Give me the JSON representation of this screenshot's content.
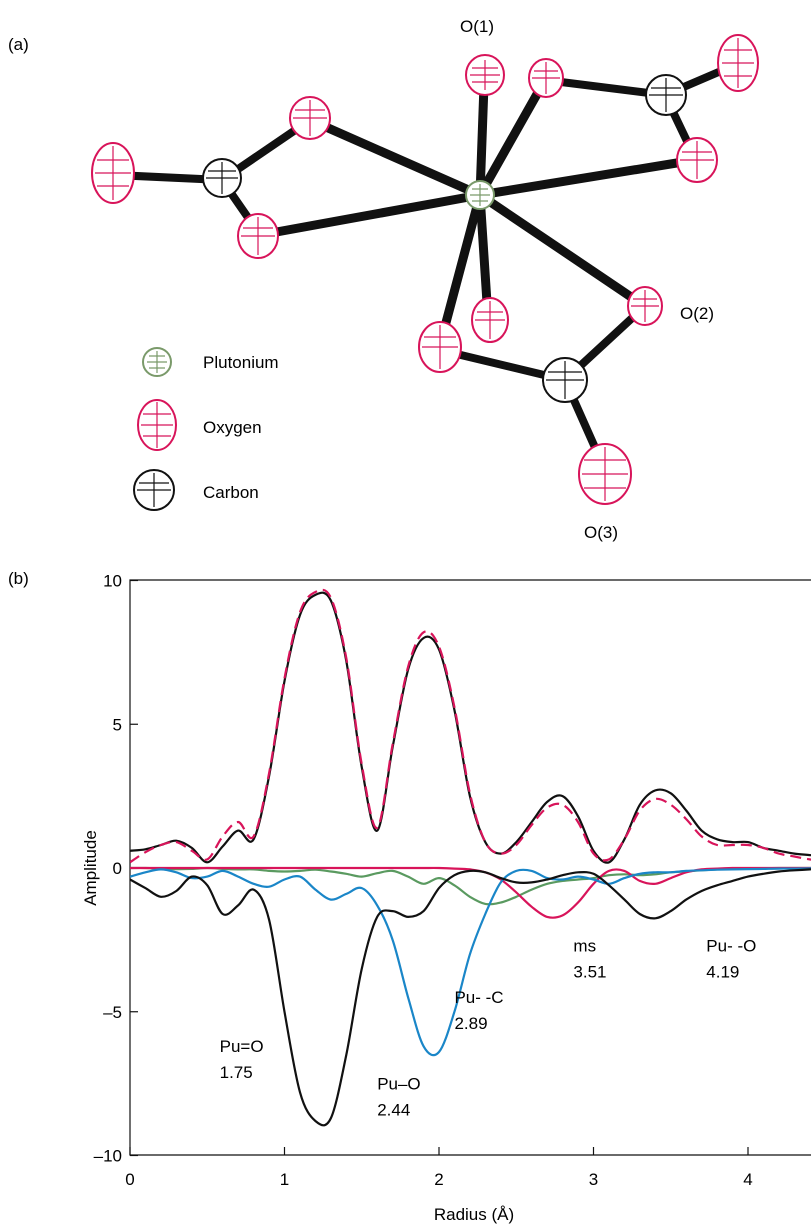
{
  "panel_a": {
    "label": "(a)",
    "atom_labels": {
      "o1": "O(1)",
      "o2": "O(2)",
      "o3": "O(3)"
    },
    "legend": [
      {
        "key": "plutonium",
        "label": "Plutonium",
        "color": "#7a9a6a"
      },
      {
        "key": "oxygen",
        "label": "Oxygen",
        "color": "#d8145a"
      },
      {
        "key": "carbon",
        "label": "Carbon",
        "color": "#111111"
      }
    ]
  },
  "chart_data": {
    "type": "line",
    "panel_label": "(b)",
    "xlabel": "Radius (Å)",
    "ylabel": "Amplitude",
    "xlim": [
      0,
      4.5
    ],
    "ylim": [
      -10,
      10
    ],
    "xticks": [
      0,
      1,
      2,
      3,
      4
    ],
    "yticks": [
      -10,
      -5,
      0,
      5,
      10
    ],
    "ytick_labels": [
      "–10",
      "–5",
      "0",
      "5",
      "10"
    ],
    "grid": false,
    "series": [
      {
        "key": "data",
        "color": "#111111",
        "style": "solid",
        "x": [
          0,
          0.1,
          0.2,
          0.3,
          0.4,
          0.5,
          0.6,
          0.7,
          0.8,
          0.9,
          1.0,
          1.1,
          1.2,
          1.3,
          1.4,
          1.5,
          1.6,
          1.7,
          1.8,
          1.9,
          2.0,
          2.1,
          2.2,
          2.3,
          2.4,
          2.5,
          2.6,
          2.7,
          2.8,
          2.9,
          3.0,
          3.1,
          3.2,
          3.3,
          3.4,
          3.5,
          3.6,
          3.7,
          3.8,
          3.9,
          4.0,
          4.1,
          4.2,
          4.3,
          4.4,
          4.5
        ],
        "y": [
          0.6,
          0.65,
          0.8,
          0.95,
          0.7,
          0.2,
          0.75,
          1.3,
          1.0,
          3.2,
          6.5,
          8.8,
          9.5,
          9.3,
          7.2,
          3.5,
          1.3,
          4.2,
          6.9,
          8.0,
          7.6,
          5.5,
          2.5,
          0.9,
          0.5,
          0.9,
          1.6,
          2.3,
          2.5,
          1.8,
          0.6,
          0.2,
          1.0,
          2.2,
          2.7,
          2.6,
          2.0,
          1.3,
          1.0,
          0.9,
          0.9,
          0.7,
          0.6,
          0.5,
          0.45,
          0.4
        ]
      },
      {
        "key": "fit",
        "color": "#d8145a",
        "style": "dashed",
        "x": [
          0,
          0.1,
          0.2,
          0.3,
          0.4,
          0.5,
          0.6,
          0.7,
          0.8,
          0.9,
          1.0,
          1.1,
          1.2,
          1.3,
          1.4,
          1.5,
          1.6,
          1.7,
          1.8,
          1.9,
          2.0,
          2.1,
          2.2,
          2.3,
          2.4,
          2.5,
          2.6,
          2.7,
          2.8,
          2.9,
          3.0,
          3.1,
          3.2,
          3.3,
          3.4,
          3.5,
          3.6,
          3.7,
          3.8,
          3.9,
          4.0,
          4.1,
          4.2,
          4.3,
          4.4,
          4.5
        ],
        "y": [
          0.2,
          0.55,
          0.8,
          0.9,
          0.6,
          0.3,
          1.1,
          1.6,
          1.1,
          3.3,
          6.6,
          8.9,
          9.6,
          9.4,
          7.3,
          3.6,
          1.4,
          4.3,
          7.0,
          8.2,
          7.7,
          5.6,
          2.6,
          0.9,
          0.5,
          0.8,
          1.5,
          2.1,
          2.2,
          1.6,
          0.5,
          0.3,
          1.0,
          2.0,
          2.4,
          2.2,
          1.7,
          1.1,
          0.8,
          0.8,
          0.8,
          0.7,
          0.5,
          0.4,
          0.3,
          0.25
        ]
      },
      {
        "key": "pu_o_175",
        "color": "#111111",
        "style": "solid",
        "x": [
          0,
          0.1,
          0.2,
          0.3,
          0.4,
          0.5,
          0.6,
          0.7,
          0.8,
          0.9,
          1.0,
          1.1,
          1.2,
          1.3,
          1.4,
          1.5,
          1.6,
          1.7,
          1.8,
          1.9,
          2.0,
          2.1,
          2.2,
          2.3,
          2.4,
          2.5,
          2.6,
          2.7,
          2.8,
          2.9,
          3.0,
          3.1,
          3.2,
          3.3,
          3.4,
          3.5,
          3.6,
          3.7,
          3.8,
          3.9,
          4.0,
          4.1,
          4.2,
          4.3,
          4.4,
          4.5
        ],
        "y": [
          -0.4,
          -0.7,
          -1.0,
          -0.8,
          -0.3,
          -0.6,
          -1.6,
          -1.3,
          -0.75,
          -1.8,
          -5.0,
          -7.8,
          -8.8,
          -8.7,
          -6.5,
          -3.5,
          -1.7,
          -1.5,
          -1.7,
          -1.5,
          -0.7,
          -0.25,
          -0.1,
          -0.15,
          -0.35,
          -0.5,
          -0.5,
          -0.4,
          -0.25,
          -0.15,
          -0.2,
          -0.6,
          -1.1,
          -1.6,
          -1.75,
          -1.5,
          -1.1,
          -0.8,
          -0.6,
          -0.45,
          -0.3,
          -0.2,
          -0.12,
          -0.08,
          -0.05,
          -0.02
        ]
      },
      {
        "key": "pu_o_244",
        "color": "#1a86c8",
        "style": "solid",
        "x": [
          0,
          0.1,
          0.2,
          0.3,
          0.4,
          0.5,
          0.6,
          0.7,
          0.8,
          0.9,
          1.0,
          1.1,
          1.2,
          1.3,
          1.4,
          1.5,
          1.6,
          1.7,
          1.8,
          1.9,
          2.0,
          2.1,
          2.2,
          2.3,
          2.4,
          2.5,
          2.6,
          2.7,
          2.8,
          2.9,
          3.0,
          3.1,
          3.2,
          3.3,
          3.4,
          3.5,
          3.6,
          3.7,
          3.8,
          3.9,
          4.0,
          4.1,
          4.2,
          4.3,
          4.4,
          4.5
        ],
        "y": [
          -0.3,
          -0.15,
          -0.05,
          -0.15,
          -0.35,
          -0.3,
          -0.1,
          -0.3,
          -0.55,
          -0.65,
          -0.4,
          -0.3,
          -0.75,
          -1.1,
          -0.9,
          -0.7,
          -1.3,
          -2.5,
          -4.5,
          -6.2,
          -6.4,
          -5.0,
          -3.0,
          -1.6,
          -0.5,
          -0.1,
          -0.1,
          -0.35,
          -0.4,
          -0.3,
          -0.4,
          -0.55,
          -0.35,
          -0.2,
          -0.15,
          -0.15,
          -0.1,
          -0.08,
          -0.06,
          -0.05,
          -0.04,
          -0.03,
          -0.02,
          -0.02,
          -0.01,
          -0.01
        ]
      },
      {
        "key": "pu_c_289",
        "color": "#5a9a60",
        "style": "solid",
        "x": [
          0,
          0.1,
          0.2,
          0.3,
          0.4,
          0.5,
          0.6,
          0.7,
          0.8,
          0.9,
          1.0,
          1.1,
          1.2,
          1.3,
          1.4,
          1.5,
          1.6,
          1.7,
          1.8,
          1.9,
          2.0,
          2.1,
          2.2,
          2.3,
          2.4,
          2.5,
          2.6,
          2.7,
          2.8,
          2.9,
          3.0,
          3.1,
          3.2,
          3.3,
          3.4,
          3.5,
          3.6,
          3.7,
          3.8,
          3.9,
          4.0,
          4.1,
          4.2,
          4.3,
          4.4,
          4.5
        ],
        "y": [
          0,
          0,
          -0.02,
          -0.04,
          -0.03,
          0,
          -0.03,
          -0.05,
          -0.05,
          -0.1,
          -0.12,
          -0.1,
          -0.06,
          -0.12,
          -0.2,
          -0.3,
          -0.18,
          -0.1,
          -0.3,
          -0.55,
          -0.35,
          -0.6,
          -1.0,
          -1.25,
          -1.2,
          -1.0,
          -0.75,
          -0.55,
          -0.45,
          -0.4,
          -0.35,
          -0.25,
          -0.22,
          -0.25,
          -0.22,
          -0.15,
          -0.12,
          -0.08,
          -0.05,
          -0.03,
          -0.02,
          -0.01,
          0,
          0,
          0,
          0
        ]
      },
      {
        "key": "ms_351",
        "color": "#d8145a",
        "style": "solid",
        "x": [
          0,
          0.1,
          0.2,
          0.3,
          0.4,
          0.5,
          0.6,
          0.7,
          0.8,
          0.9,
          1.0,
          1.1,
          1.2,
          1.3,
          1.4,
          1.5,
          1.6,
          1.7,
          1.8,
          1.9,
          2.0,
          2.1,
          2.2,
          2.3,
          2.4,
          2.5,
          2.6,
          2.7,
          2.8,
          2.9,
          3.0,
          3.1,
          3.2,
          3.3,
          3.4,
          3.5,
          3.6,
          3.7,
          3.8,
          3.9,
          4.0,
          4.1,
          4.2,
          4.3,
          4.4,
          4.5
        ],
        "y": [
          0,
          0,
          0,
          0,
          0,
          0,
          0,
          0,
          0,
          0,
          0,
          0,
          0,
          0,
          0,
          0,
          0,
          0,
          0,
          0,
          0,
          -0.02,
          -0.05,
          -0.15,
          -0.4,
          -0.85,
          -1.35,
          -1.7,
          -1.65,
          -1.2,
          -0.55,
          -0.1,
          -0.1,
          -0.45,
          -0.55,
          -0.35,
          -0.15,
          -0.05,
          -0.02,
          0,
          0,
          0,
          0,
          0,
          0,
          0
        ]
      }
    ],
    "annotations": [
      {
        "line1": "Pu=O",
        "line2": "1.75",
        "x": 0.58,
        "y": -6.4
      },
      {
        "line1": "Pu–O",
        "line2": "2.44",
        "x": 1.6,
        "y": -7.7
      },
      {
        "line1": "Pu- -C",
        "line2": "2.89",
        "x": 2.1,
        "y": -4.7
      },
      {
        "line1": "ms",
        "line2": "3.51",
        "x": 2.87,
        "y": -2.9
      },
      {
        "line1": "Pu- -O",
        "line2": "4.19",
        "x": 3.73,
        "y": -2.9
      }
    ]
  }
}
